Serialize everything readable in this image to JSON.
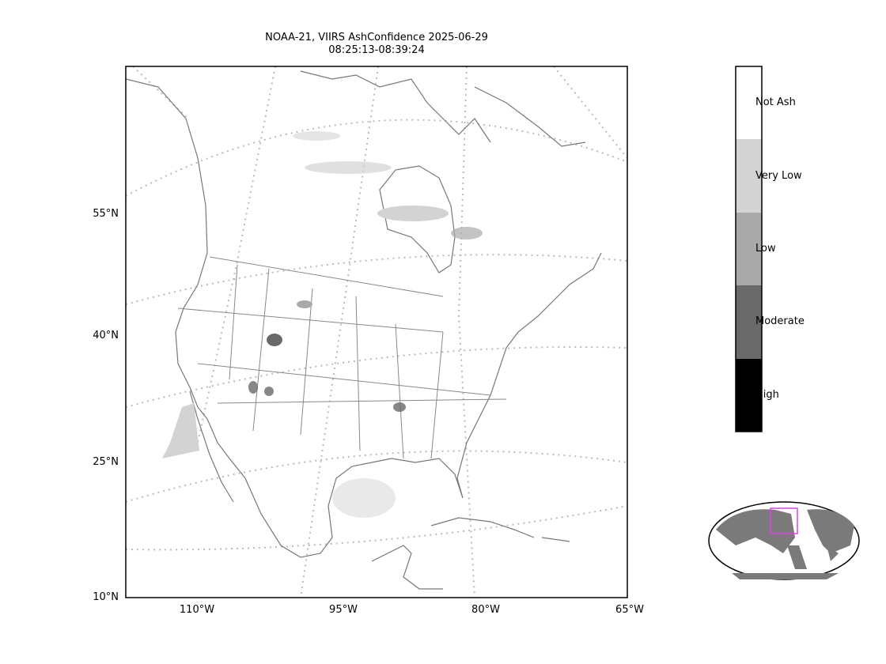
{
  "title": {
    "line1": "NOAA-21, VIIRS AshConfidence 2025-06-29",
    "line2": "08:25:13-08:39:24"
  },
  "lat_labels": [
    "55°N",
    "40°N",
    "25°N",
    "10°N"
  ],
  "lon_labels": [
    "110°W",
    "95°W",
    "80°W",
    "65°W"
  ],
  "colorbar": {
    "labels": [
      "Not Ash",
      "Very Low",
      "Low",
      "Moderate",
      "High"
    ],
    "colors": [
      "#ffffff",
      "#d3d3d3",
      "#a9a9a9",
      "#696969",
      "#000000"
    ]
  },
  "inset": {
    "land_color": "#7a7a7a",
    "extent_box_color": "#e040e0"
  },
  "colors": {
    "coastline": "#777777",
    "graticule": "#bbbbbb",
    "ash_very_low": "#d3d3d3",
    "ash_moderate": "#696969"
  }
}
